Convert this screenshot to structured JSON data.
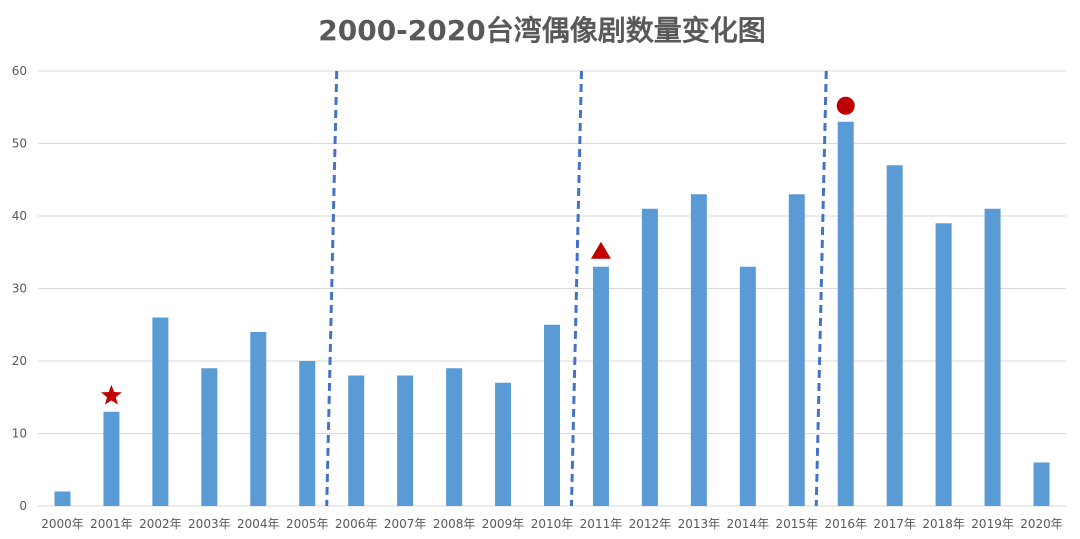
{
  "chart_data": {
    "type": "bar",
    "title": "2000-2020台湾偶像剧数量变化图",
    "xlabel": "",
    "ylabel": "",
    "ylim": [
      0,
      60
    ],
    "yticks": [
      0,
      10,
      20,
      30,
      40,
      50,
      60
    ],
    "grid": true,
    "legend": "none",
    "categories": [
      "2000年",
      "2001年",
      "2002年",
      "2003年",
      "2004年",
      "2005年",
      "2006年",
      "2007年",
      "2008年",
      "2009年",
      "2010年",
      "2011年",
      "2012年",
      "2013年",
      "2014年",
      "2015年",
      "2016年",
      "2017年",
      "2018年",
      "2019年",
      "2020年"
    ],
    "values": [
      2,
      13,
      26,
      19,
      24,
      20,
      18,
      18,
      19,
      17,
      25,
      33,
      41,
      43,
      33,
      43,
      53,
      47,
      39,
      41,
      6
    ],
    "bar_color": "#5b9bd5",
    "period_dividers": [
      {
        "between": [
          "2005年",
          "2006年"
        ]
      },
      {
        "between": [
          "2010年",
          "2011年"
        ]
      },
      {
        "between": [
          "2015年",
          "2016年"
        ]
      }
    ],
    "divider_color": "#4472c4",
    "markers": [
      {
        "category": "2001年",
        "shape": "star",
        "color": "#c00000"
      },
      {
        "category": "2011年",
        "shape": "triangle",
        "color": "#c00000"
      },
      {
        "category": "2016年",
        "shape": "circle",
        "color": "#c00000"
      }
    ]
  }
}
